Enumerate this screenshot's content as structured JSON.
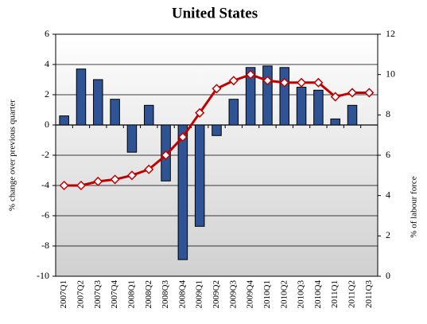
{
  "chart_data": {
    "type": "bar",
    "title": "United States",
    "ylabel": "% change over previous quarter",
    "y2label": "% of labour force",
    "categories": [
      "2007Q1",
      "2007Q2",
      "2007Q3",
      "2007Q4",
      "2008Q1",
      "2008Q2",
      "2008Q3",
      "2008Q4",
      "2009Q1",
      "2009Q2",
      "2009Q3",
      "2009Q4",
      "2010Q1",
      "2010Q2",
      "2010Q3",
      "2010Q4",
      "2011Q1",
      "2011Q2",
      "2011Q3"
    ],
    "series": [
      {
        "type": "bar",
        "color": "#2f5496",
        "values": [
          0.6,
          3.7,
          3.0,
          1.7,
          -1.8,
          1.3,
          -3.7,
          -8.9,
          -6.7,
          -0.7,
          1.7,
          3.8,
          3.9,
          3.8,
          2.5,
          2.3,
          0.4,
          1.3,
          null
        ]
      },
      {
        "type": "line",
        "axis": "y2",
        "color": "#c00000",
        "values": [
          4.5,
          4.5,
          4.7,
          4.8,
          5.0,
          5.3,
          6.0,
          6.9,
          8.1,
          9.3,
          9.7,
          10.0,
          9.7,
          9.6,
          9.6,
          9.6,
          8.9,
          9.1,
          9.1
        ]
      }
    ],
    "ylim": [
      -10,
      6
    ],
    "yticks": [
      -10,
      -8,
      -6,
      -4,
      -2,
      0,
      2,
      4,
      6
    ],
    "y2lim": [
      0,
      12
    ],
    "y2ticks": [
      0,
      2,
      4,
      6,
      8,
      10,
      12
    ],
    "grid": true
  }
}
